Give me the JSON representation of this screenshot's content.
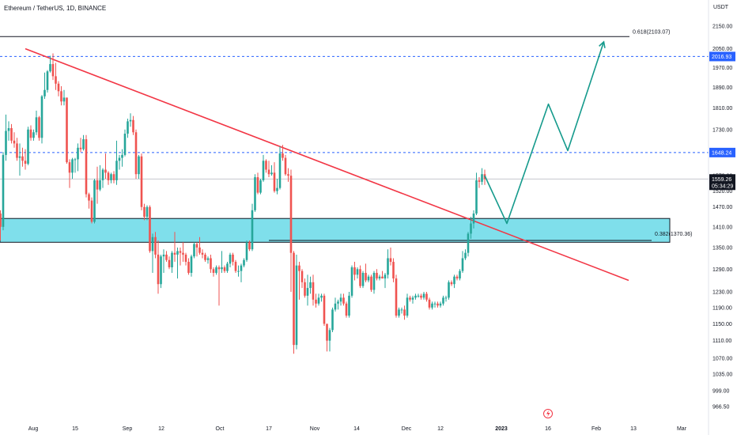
{
  "chart_data": {
    "type": "candlestick",
    "title": "Ethereum / TetherUS, 1D, BINANCE",
    "currency": "USDT",
    "y_scale": "log",
    "ylim": [
      950,
      2170
    ],
    "y_ticks": [
      "2150.00",
      "2050.00",
      "1970.00",
      "1890.00",
      "1810.00",
      "1730.00",
      "1650.00",
      "1570.00",
      "1520.00",
      "1470.00",
      "1410.00",
      "1350.00",
      "1290.00",
      "1230.00",
      "1190.00",
      "1150.00",
      "1110.00",
      "1070.00",
      "1035.00",
      "999.00",
      "966.50"
    ],
    "x_ticks": [
      "Aug",
      "15",
      "Sep",
      "12",
      "Oct",
      "17",
      "Nov",
      "14",
      "Dec",
      "12",
      "2023",
      "16",
      "Feb",
      "13",
      "Mar"
    ],
    "x_tick_bold": [
      "2023"
    ],
    "colors": {
      "up": "#26a69a",
      "down": "#ef5350",
      "trendline": "#f23645",
      "zone": "#7fdfeb",
      "projection": "#159a8c",
      "price_tag": "#131722",
      "level_tag": "#2962ff"
    },
    "current_price": {
      "value": 1559.26,
      "countdown": "05:34:29"
    },
    "horizontal_levels": [
      {
        "value": 2016.93,
        "label": "2016.93"
      },
      {
        "value": 1648.24,
        "label": "1648.24"
      }
    ],
    "fib_levels": [
      {
        "value": 2103.07,
        "label": "0.618(2103.07)"
      },
      {
        "value": 1370.36,
        "label": "0.382(1370.36)"
      }
    ],
    "support_zone": {
      "low": 1365,
      "high": 1435
    },
    "trendline": {
      "start_date": "2022-08-04",
      "start_price": 2050,
      "end_date": "2023-03-10",
      "end_price": 1260
    },
    "projection_path": [
      {
        "date": "2023-01-17",
        "price": 1570
      },
      {
        "date": "2023-01-25",
        "price": 1420
      },
      {
        "date": "2023-02-09",
        "price": 1825
      },
      {
        "date": "2023-02-16",
        "price": 1655
      },
      {
        "date": "2023-03-01",
        "price": 2080
      }
    ],
    "candles": [
      [
        "2022-07-26",
        1450,
        1460,
        1370,
        1410
      ],
      [
        "2022-07-27",
        1410,
        1650,
        1400,
        1640
      ],
      [
        "2022-07-28",
        1640,
        1785,
        1620,
        1725
      ],
      [
        "2022-07-29",
        1725,
        1760,
        1690,
        1735
      ],
      [
        "2022-07-30",
        1735,
        1750,
        1680,
        1690
      ],
      [
        "2022-07-31",
        1690,
        1720,
        1665,
        1680
      ],
      [
        "2022-08-01",
        1680,
        1700,
        1620,
        1630
      ],
      [
        "2022-08-02",
        1630,
        1680,
        1570,
        1635
      ],
      [
        "2022-08-03",
        1635,
        1665,
        1600,
        1620
      ],
      [
        "2022-08-04",
        1620,
        1660,
        1590,
        1610
      ],
      [
        "2022-08-05",
        1610,
        1740,
        1605,
        1730
      ],
      [
        "2022-08-06",
        1730,
        1745,
        1690,
        1700
      ],
      [
        "2022-08-07",
        1700,
        1730,
        1690,
        1720
      ],
      [
        "2022-08-08",
        1720,
        1800,
        1710,
        1775
      ],
      [
        "2022-08-09",
        1775,
        1780,
        1690,
        1700
      ],
      [
        "2022-08-10",
        1700,
        1860,
        1680,
        1855
      ],
      [
        "2022-08-11",
        1855,
        1950,
        1845,
        1880
      ],
      [
        "2022-08-12",
        1880,
        1960,
        1870,
        1955
      ],
      [
        "2022-08-13",
        1955,
        2020,
        1950,
        1985
      ],
      [
        "2022-08-14",
        1985,
        2030,
        1920,
        1935
      ],
      [
        "2022-08-15",
        1935,
        1990,
        1880,
        1905
      ],
      [
        "2022-08-16",
        1905,
        1915,
        1855,
        1875
      ],
      [
        "2022-08-17",
        1875,
        1895,
        1820,
        1835
      ],
      [
        "2022-08-18",
        1835,
        1880,
        1820,
        1850
      ],
      [
        "2022-08-19",
        1850,
        1850,
        1610,
        1615
      ],
      [
        "2022-08-20",
        1615,
        1625,
        1530,
        1580
      ],
      [
        "2022-08-21",
        1580,
        1630,
        1560,
        1625
      ],
      [
        "2022-08-22",
        1625,
        1630,
        1580,
        1625
      ],
      [
        "2022-08-23",
        1625,
        1680,
        1585,
        1665
      ],
      [
        "2022-08-24",
        1665,
        1700,
        1650,
        1660
      ],
      [
        "2022-08-25",
        1660,
        1710,
        1655,
        1695
      ],
      [
        "2022-08-26",
        1695,
        1710,
        1500,
        1510
      ],
      [
        "2022-08-27",
        1510,
        1515,
        1465,
        1490
      ],
      [
        "2022-08-28",
        1490,
        1500,
        1420,
        1425
      ],
      [
        "2022-08-29",
        1425,
        1560,
        1420,
        1555
      ],
      [
        "2022-08-30",
        1555,
        1600,
        1480,
        1525
      ],
      [
        "2022-08-31",
        1525,
        1605,
        1520,
        1555
      ],
      [
        "2022-09-01",
        1555,
        1595,
        1530,
        1590
      ],
      [
        "2022-09-02",
        1590,
        1645,
        1560,
        1580
      ],
      [
        "2022-09-03",
        1580,
        1585,
        1540,
        1555
      ],
      [
        "2022-09-04",
        1555,
        1580,
        1545,
        1575
      ],
      [
        "2022-09-05",
        1575,
        1585,
        1545,
        1555
      ],
      [
        "2022-09-06",
        1555,
        1690,
        1540,
        1620
      ],
      [
        "2022-09-07",
        1620,
        1640,
        1590,
        1630
      ],
      [
        "2022-09-08",
        1630,
        1660,
        1600,
        1640
      ],
      [
        "2022-09-09",
        1640,
        1730,
        1635,
        1715
      ],
      [
        "2022-09-10",
        1715,
        1770,
        1700,
        1760
      ],
      [
        "2022-09-11",
        1760,
        1790,
        1740,
        1765
      ],
      [
        "2022-09-12",
        1765,
        1780,
        1710,
        1720
      ],
      [
        "2022-09-13",
        1720,
        1730,
        1560,
        1575
      ],
      [
        "2022-09-14",
        1575,
        1640,
        1560,
        1635
      ],
      [
        "2022-09-15",
        1635,
        1645,
        1460,
        1470
      ],
      [
        "2022-09-16",
        1470,
        1480,
        1430,
        1440
      ],
      [
        "2022-09-17",
        1440,
        1475,
        1430,
        1470
      ],
      [
        "2022-09-18",
        1470,
        1475,
        1335,
        1340
      ],
      [
        "2022-09-19",
        1340,
        1390,
        1280,
        1380
      ],
      [
        "2022-09-20",
        1380,
        1395,
        1320,
        1330
      ],
      [
        "2022-09-21",
        1330,
        1370,
        1225,
        1250
      ],
      [
        "2022-09-22",
        1250,
        1330,
        1240,
        1325
      ],
      [
        "2022-09-23",
        1325,
        1345,
        1280,
        1330
      ],
      [
        "2022-09-24",
        1330,
        1340,
        1310,
        1315
      ],
      [
        "2022-09-25",
        1315,
        1325,
        1290,
        1295
      ],
      [
        "2022-09-26",
        1295,
        1340,
        1280,
        1335
      ],
      [
        "2022-09-27",
        1335,
        1395,
        1310,
        1330
      ],
      [
        "2022-09-28",
        1330,
        1350,
        1265,
        1340
      ],
      [
        "2022-09-29",
        1340,
        1350,
        1300,
        1335
      ],
      [
        "2022-09-30",
        1335,
        1365,
        1310,
        1330
      ],
      [
        "2022-10-01",
        1330,
        1335,
        1300,
        1310
      ],
      [
        "2022-10-02",
        1310,
        1320,
        1275,
        1280
      ],
      [
        "2022-10-03",
        1280,
        1330,
        1270,
        1325
      ],
      [
        "2022-10-04",
        1325,
        1365,
        1320,
        1360
      ],
      [
        "2022-10-05",
        1360,
        1365,
        1325,
        1350
      ],
      [
        "2022-10-06",
        1350,
        1380,
        1330,
        1335
      ],
      [
        "2022-10-07",
        1335,
        1345,
        1320,
        1330
      ],
      [
        "2022-10-08",
        1330,
        1335,
        1310,
        1315
      ],
      [
        "2022-10-09",
        1315,
        1325,
        1305,
        1320
      ],
      [
        "2022-10-10",
        1320,
        1330,
        1280,
        1290
      ],
      [
        "2022-10-11",
        1290,
        1295,
        1270,
        1280
      ],
      [
        "2022-10-12",
        1280,
        1300,
        1275,
        1295
      ],
      [
        "2022-10-13",
        1295,
        1300,
        1195,
        1290
      ],
      [
        "2022-10-14",
        1290,
        1340,
        1280,
        1295
      ],
      [
        "2022-10-15",
        1295,
        1300,
        1280,
        1285
      ],
      [
        "2022-10-16",
        1285,
        1310,
        1280,
        1305
      ],
      [
        "2022-10-17",
        1305,
        1335,
        1295,
        1330
      ],
      [
        "2022-10-18",
        1330,
        1335,
        1300,
        1310
      ],
      [
        "2022-10-19",
        1310,
        1315,
        1280,
        1285
      ],
      [
        "2022-10-20",
        1285,
        1300,
        1270,
        1285
      ],
      [
        "2022-10-21",
        1285,
        1305,
        1255,
        1300
      ],
      [
        "2022-10-22",
        1300,
        1320,
        1295,
        1315
      ],
      [
        "2022-10-23",
        1315,
        1370,
        1310,
        1365
      ],
      [
        "2022-10-24",
        1365,
        1370,
        1340,
        1345
      ],
      [
        "2022-10-25",
        1345,
        1480,
        1340,
        1460
      ],
      [
        "2022-10-26",
        1460,
        1575,
        1455,
        1565
      ],
      [
        "2022-10-27",
        1565,
        1580,
        1510,
        1515
      ],
      [
        "2022-10-28",
        1515,
        1560,
        1510,
        1555
      ],
      [
        "2022-10-29",
        1555,
        1640,
        1550,
        1620
      ],
      [
        "2022-10-30",
        1620,
        1625,
        1580,
        1590
      ],
      [
        "2022-10-31",
        1590,
        1620,
        1565,
        1575
      ],
      [
        "2022-11-01",
        1575,
        1605,
        1570,
        1580
      ],
      [
        "2022-11-02",
        1580,
        1615,
        1515,
        1520
      ],
      [
        "2022-11-03",
        1520,
        1560,
        1510,
        1530
      ],
      [
        "2022-11-04",
        1530,
        1670,
        1525,
        1645
      ],
      [
        "2022-11-05",
        1645,
        1675,
        1620,
        1630
      ],
      [
        "2022-11-06",
        1630,
        1640,
        1570,
        1575
      ],
      [
        "2022-11-07",
        1575,
        1595,
        1550,
        1570
      ],
      [
        "2022-11-08",
        1570,
        1590,
        1230,
        1335
      ],
      [
        "2022-11-09",
        1335,
        1340,
        1080,
        1100
      ],
      [
        "2022-11-10",
        1100,
        1330,
        1090,
        1300
      ],
      [
        "2022-11-11",
        1300,
        1310,
        1210,
        1285
      ],
      [
        "2022-11-12",
        1285,
        1290,
        1240,
        1255
      ],
      [
        "2022-11-13",
        1255,
        1265,
        1215,
        1220
      ],
      [
        "2022-11-14",
        1220,
        1275,
        1195,
        1240
      ],
      [
        "2022-11-15",
        1240,
        1270,
        1225,
        1255
      ],
      [
        "2022-11-16",
        1255,
        1275,
        1195,
        1210
      ],
      [
        "2022-11-17",
        1210,
        1225,
        1190,
        1200
      ],
      [
        "2022-11-18",
        1200,
        1225,
        1195,
        1215
      ],
      [
        "2022-11-19",
        1215,
        1225,
        1205,
        1220
      ],
      [
        "2022-11-20",
        1220,
        1225,
        1145,
        1150
      ],
      [
        "2022-11-21",
        1150,
        1150,
        1085,
        1110
      ],
      [
        "2022-11-22",
        1110,
        1140,
        1085,
        1135
      ],
      [
        "2022-11-23",
        1135,
        1190,
        1130,
        1185
      ],
      [
        "2022-11-24",
        1185,
        1215,
        1180,
        1200
      ],
      [
        "2022-11-25",
        1200,
        1210,
        1185,
        1205
      ],
      [
        "2022-11-26",
        1205,
        1225,
        1195,
        1215
      ],
      [
        "2022-11-27",
        1215,
        1225,
        1195,
        1200
      ],
      [
        "2022-11-28",
        1200,
        1205,
        1165,
        1170
      ],
      [
        "2022-11-29",
        1170,
        1230,
        1165,
        1220
      ],
      [
        "2022-11-30",
        1220,
        1300,
        1215,
        1295
      ],
      [
        "2022-12-01",
        1295,
        1310,
        1260,
        1275
      ],
      [
        "2022-12-02",
        1275,
        1295,
        1265,
        1290
      ],
      [
        "2022-12-03",
        1290,
        1300,
        1240,
        1245
      ],
      [
        "2022-12-04",
        1245,
        1285,
        1240,
        1280
      ],
      [
        "2022-12-05",
        1280,
        1305,
        1255,
        1260
      ],
      [
        "2022-12-06",
        1260,
        1275,
        1255,
        1270
      ],
      [
        "2022-12-07",
        1270,
        1275,
        1230,
        1235
      ],
      [
        "2022-12-08",
        1235,
        1285,
        1225,
        1280
      ],
      [
        "2022-12-09",
        1280,
        1290,
        1260,
        1265
      ],
      [
        "2022-12-10",
        1265,
        1275,
        1260,
        1270
      ],
      [
        "2022-12-11",
        1270,
        1285,
        1265,
        1265
      ],
      [
        "2022-12-12",
        1265,
        1280,
        1240,
        1275
      ],
      [
        "2022-12-13",
        1275,
        1345,
        1265,
        1320
      ],
      [
        "2022-12-14",
        1320,
        1350,
        1300,
        1310
      ],
      [
        "2022-12-15",
        1310,
        1320,
        1255,
        1265
      ],
      [
        "2022-12-16",
        1265,
        1275,
        1165,
        1170
      ],
      [
        "2022-12-17",
        1170,
        1190,
        1165,
        1185
      ],
      [
        "2022-12-18",
        1185,
        1190,
        1175,
        1185
      ],
      [
        "2022-12-19",
        1185,
        1195,
        1160,
        1170
      ],
      [
        "2022-12-20",
        1170,
        1225,
        1165,
        1215
      ],
      [
        "2022-12-21",
        1215,
        1220,
        1205,
        1210
      ],
      [
        "2022-12-22",
        1210,
        1220,
        1200,
        1215
      ],
      [
        "2022-12-23",
        1215,
        1225,
        1210,
        1220
      ],
      [
        "2022-12-24",
        1220,
        1225,
        1215,
        1220
      ],
      [
        "2022-12-25",
        1220,
        1225,
        1210,
        1215
      ],
      [
        "2022-12-26",
        1215,
        1230,
        1210,
        1225
      ],
      [
        "2022-12-27",
        1225,
        1230,
        1205,
        1210
      ],
      [
        "2022-12-28",
        1210,
        1215,
        1185,
        1190
      ],
      [
        "2022-12-29",
        1190,
        1205,
        1185,
        1200
      ],
      [
        "2022-12-30",
        1200,
        1205,
        1190,
        1200
      ],
      [
        "2022-12-31",
        1200,
        1205,
        1190,
        1195
      ],
      [
        "2023-01-01",
        1195,
        1205,
        1190,
        1200
      ],
      [
        "2023-01-02",
        1200,
        1220,
        1195,
        1215
      ],
      [
        "2023-01-03",
        1215,
        1220,
        1205,
        1215
      ],
      [
        "2023-01-04",
        1215,
        1260,
        1210,
        1255
      ],
      [
        "2023-01-05",
        1255,
        1260,
        1245,
        1250
      ],
      [
        "2023-01-06",
        1250,
        1275,
        1240,
        1270
      ],
      [
        "2023-01-07",
        1270,
        1275,
        1260,
        1265
      ],
      [
        "2023-01-08",
        1265,
        1290,
        1260,
        1285
      ],
      [
        "2023-01-09",
        1285,
        1340,
        1280,
        1320
      ],
      [
        "2023-01-10",
        1320,
        1345,
        1315,
        1335
      ],
      [
        "2023-01-11",
        1335,
        1395,
        1325,
        1390
      ],
      [
        "2023-01-12",
        1390,
        1440,
        1375,
        1420
      ],
      [
        "2023-01-13",
        1420,
        1460,
        1405,
        1450
      ],
      [
        "2023-01-14",
        1450,
        1580,
        1445,
        1555
      ],
      [
        "2023-01-15",
        1555,
        1565,
        1530,
        1550
      ],
      [
        "2023-01-16",
        1550,
        1595,
        1540,
        1575
      ],
      [
        "2023-01-17",
        1575,
        1590,
        1540,
        1559.26
      ]
    ]
  }
}
